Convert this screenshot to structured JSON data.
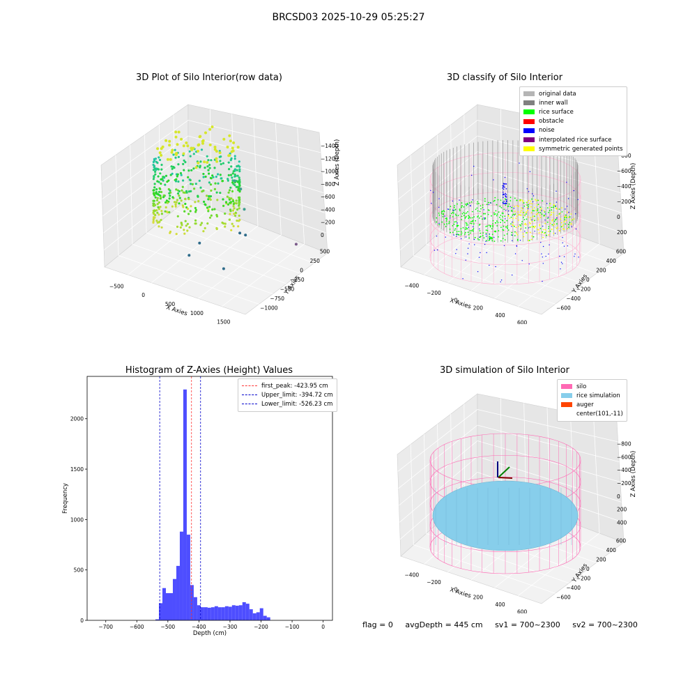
{
  "figure": {
    "suptitle": "BRCSD03 2025-10-29 05:25:27"
  },
  "chart_data": [
    {
      "type": "scatter",
      "title": "3D Plot of Silo Interior(row data)",
      "xlabel": "X Axies",
      "ylabel": "Y Axies",
      "zlabel": "Z Axies (Depth)",
      "xticks": [
        "−500",
        "0",
        "500",
        "1000",
        "1500"
      ],
      "yticks": [
        "−1000",
        "−750",
        "−500",
        "−250",
        "0",
        "250",
        "500"
      ],
      "zticks": [
        "−1400",
        "−1200",
        "−1000",
        "−800",
        "−600",
        "−400",
        "−200",
        "0"
      ],
      "outliers": [
        {
          "x": 450,
          "y": 250,
          "z": -650
        },
        {
          "x": 600,
          "y": 200,
          "z": -700
        },
        {
          "x": 750,
          "y": 100,
          "z": -900
        },
        {
          "x": 800,
          "y": -50,
          "z": -1150
        },
        {
          "x": 900,
          "y": -50,
          "z": -1150
        },
        {
          "x": 300,
          "y": -300,
          "z": -1300
        },
        {
          "x": 1500,
          "y": 300,
          "z": -1300
        },
        {
          "x": 900,
          "y": -500,
          "z": -1400
        },
        {
          "x": 200,
          "y": -400,
          "z": -1450
        }
      ]
    },
    {
      "type": "scatter",
      "title": "3D classify of Silo Interior",
      "xlabel": "X Axies",
      "ylabel": "Y Axies",
      "zlabel": "Z Axies (Depth)",
      "xticks": [
        "−400",
        "−200",
        "0",
        "200",
        "400",
        "600"
      ],
      "yticks": [
        "−600",
        "−400",
        "−200",
        "0",
        "200",
        "400",
        "600"
      ],
      "zticks": [
        "−800",
        "−600",
        "−400",
        "−200",
        "0",
        "200"
      ],
      "legend": [
        {
          "label": "original data",
          "color": "#b5b5b5"
        },
        {
          "label": "inner wall",
          "color": "#808080"
        },
        {
          "label": "rice surface",
          "color": "#00ff00"
        },
        {
          "label": "obstacle",
          "color": "#ff0000"
        },
        {
          "label": "noise",
          "color": "#0000ff"
        },
        {
          "label": "interpolated rice surface",
          "color": "#800080"
        },
        {
          "label": "symmetric generated points",
          "color": "#ffff00"
        }
      ]
    },
    {
      "type": "bar",
      "title": "Histogram of Z-Axies (Height) Values",
      "xlabel": "Depth (cm)",
      "ylabel": "Frequency",
      "xlim": [
        -760,
        30
      ],
      "ylim": [
        0,
        2420
      ],
      "xticks": [
        -700,
        -600,
        -500,
        -400,
        -300,
        -200,
        -100,
        0
      ],
      "xtick_labels": [
        "−700",
        "−600",
        "−500",
        "−400",
        "−300",
        "−200",
        "−100",
        "0"
      ],
      "yticks": [
        0,
        500,
        1000,
        1500,
        2000
      ],
      "yticks_labels": [
        "0",
        "500",
        "1000",
        "1500",
        "2000"
      ],
      "bin_start": -540,
      "bin_width": 11.2,
      "values": [
        10,
        170,
        320,
        270,
        270,
        410,
        540,
        880,
        2290,
        850,
        350,
        230,
        150,
        130,
        130,
        125,
        130,
        140,
        130,
        130,
        140,
        135,
        150,
        145,
        150,
        180,
        165,
        110,
        70,
        80,
        120,
        45,
        30
      ],
      "bar_color": "#4444ff",
      "vlines": [
        {
          "label": "first_peak: -423.95 cm",
          "value": -423.95,
          "color": "#ff3333"
        },
        {
          "label": "Upper_limit: -394.72 cm",
          "value": -394.72,
          "color": "#0000cc"
        },
        {
          "label": "Lower_limit: -526.23 cm",
          "value": -526.23,
          "color": "#0000cc"
        }
      ]
    },
    {
      "type": "scatter",
      "title": "3D simulation of Silo Interior",
      "xlabel": "X Axies",
      "ylabel": "Y Axies",
      "zlabel": "Z Axies (Depth)",
      "xticks": [
        "−400",
        "−200",
        "0",
        "200",
        "400",
        "600"
      ],
      "yticks": [
        "−600",
        "−400",
        "−200",
        "0",
        "200",
        "400",
        "600"
      ],
      "zticks": [
        "−800",
        "−600",
        "−400",
        "−200",
        "0",
        "200",
        "400"
      ],
      "legend": [
        {
          "label": "silo",
          "color": "#ff69b4"
        },
        {
          "label": "rice simulation",
          "color": "#87ceeb"
        },
        {
          "label": "auger",
          "color": "#ff4500"
        },
        {
          "label": "center(101,-11)",
          "color": "#ffffff"
        }
      ]
    }
  ],
  "footer": {
    "flag": "flag = 0",
    "avg": "avgDepth = 445 cm",
    "sv1": "sv1 = 700~2300",
    "sv2": "sv2 = 700~2300"
  }
}
